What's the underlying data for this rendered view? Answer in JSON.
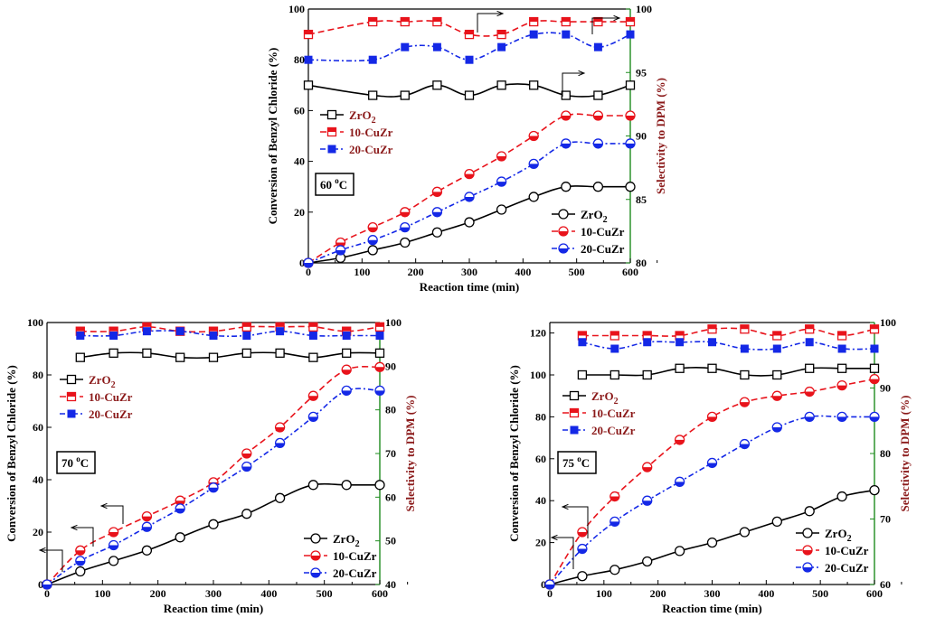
{
  "chart_data": [
    {
      "type": "line",
      "temperature": "60 °C",
      "temp_main": "60 ",
      "temp_sup": "o",
      "temp_unit": "C",
      "xlabel": "Reaction time (min)",
      "ylabel": "Conversion of Benzyl Chloride (%)",
      "ylabel_right": "Selectivity to DPM (%)",
      "x_ticks": [
        0,
        100,
        200,
        300,
        400,
        500,
        600
      ],
      "y_ticks": [
        0,
        20,
        40,
        60,
        80,
        100
      ],
      "y2_ticks": [
        80,
        85,
        90,
        95,
        100
      ],
      "xlim": [
        0,
        600
      ],
      "ylim": [
        0,
        100
      ],
      "y2lim": [
        80,
        100
      ],
      "conversion_series": [
        {
          "name": "ZrO2",
          "x": [
            0,
            60,
            120,
            180,
            240,
            300,
            360,
            420,
            480,
            540,
            600
          ],
          "values": [
            0,
            2,
            5,
            8,
            12,
            16,
            21,
            26,
            30,
            30,
            30
          ]
        },
        {
          "name": "10-CuZr",
          "x": [
            0,
            60,
            120,
            180,
            240,
            300,
            360,
            420,
            480,
            540,
            600
          ],
          "values": [
            0,
            8,
            14,
            20,
            28,
            35,
            42,
            50,
            58,
            58,
            58
          ]
        },
        {
          "name": "20-CuZr",
          "x": [
            0,
            60,
            120,
            180,
            240,
            300,
            360,
            420,
            480,
            540,
            600
          ],
          "values": [
            0,
            5,
            9,
            14,
            20,
            26,
            32,
            39,
            47,
            47,
            47
          ]
        }
      ],
      "selectivity_series": [
        {
          "name": "ZrO2",
          "x": [
            0,
            120,
            180,
            240,
            300,
            360,
            420,
            480,
            540,
            600
          ],
          "values": [
            94.0,
            93.2,
            93.2,
            94.0,
            93.2,
            94.0,
            94.0,
            93.2,
            93.2,
            94.0
          ]
        },
        {
          "name": "10-CuZr",
          "x": [
            0,
            120,
            180,
            240,
            300,
            360,
            420,
            480,
            540,
            600
          ],
          "values": [
            98.0,
            99.0,
            99.0,
            99.0,
            98.0,
            98.0,
            99.0,
            99.0,
            99.0,
            99.0
          ]
        },
        {
          "name": "20-CuZr",
          "x": [
            0,
            120,
            180,
            240,
            300,
            360,
            420,
            480,
            540,
            600
          ],
          "values": [
            96.0,
            96.0,
            97.0,
            97.0,
            96.0,
            97.0,
            98.0,
            98.0,
            97.0,
            98.0
          ]
        }
      ]
    },
    {
      "type": "line",
      "temperature": "70 °C",
      "temp_main": "70 ",
      "temp_sup": "o",
      "temp_unit": "C",
      "xlabel": "Reaction time (min)",
      "ylabel": "Conversion of Benzyl Chloride (%)",
      "ylabel_right": "Selectivity to DPM (%)",
      "x_ticks": [
        0,
        100,
        200,
        300,
        400,
        500,
        600
      ],
      "y_ticks": [
        0,
        20,
        40,
        60,
        80,
        100
      ],
      "y2_ticks": [
        40,
        50,
        60,
        70,
        80,
        90,
        100
      ],
      "xlim": [
        0,
        600
      ],
      "ylim": [
        0,
        100
      ],
      "y2lim": [
        40,
        100
      ],
      "conversion_series": [
        {
          "name": "ZrO2",
          "x": [
            0,
            60,
            120,
            180,
            240,
            300,
            360,
            420,
            480,
            540,
            600
          ],
          "values": [
            0,
            5,
            9,
            13,
            18,
            23,
            27,
            33,
            38,
            38,
            38
          ]
        },
        {
          "name": "10-CuZr",
          "x": [
            0,
            60,
            120,
            180,
            240,
            300,
            360,
            420,
            480,
            540,
            600
          ],
          "values": [
            0,
            13,
            20,
            26,
            32,
            39,
            50,
            60,
            72,
            82,
            83
          ]
        },
        {
          "name": "20-CuZr",
          "x": [
            0,
            60,
            120,
            180,
            240,
            300,
            360,
            420,
            480,
            540,
            600
          ],
          "values": [
            0,
            9,
            15,
            22,
            29,
            37,
            45,
            54,
            64,
            74,
            74
          ]
        }
      ],
      "selectivity_series": [
        {
          "name": "ZrO2",
          "x": [
            60,
            120,
            180,
            240,
            300,
            360,
            420,
            480,
            540,
            600
          ],
          "values": [
            92.0,
            93.0,
            93.0,
            92.0,
            92.0,
            93.0,
            93.0,
            92.0,
            93.0,
            93.0
          ]
        },
        {
          "name": "10-CuZr",
          "x": [
            60,
            120,
            180,
            240,
            300,
            360,
            420,
            480,
            540,
            600
          ],
          "values": [
            98.0,
            98.0,
            99.0,
            98.0,
            98.0,
            99.0,
            99.0,
            99.0,
            98.0,
            99.0
          ]
        },
        {
          "name": "20-CuZr",
          "x": [
            60,
            120,
            180,
            240,
            300,
            360,
            420,
            480,
            540,
            600
          ],
          "values": [
            97.0,
            97.0,
            98.0,
            98.0,
            97.0,
            97.0,
            98.0,
            97.0,
            97.0,
            97.0
          ]
        }
      ]
    },
    {
      "type": "line",
      "temperature": "75 °C",
      "temp_main": "75 ",
      "temp_sup": "o",
      "temp_unit": "C",
      "xlabel": "Reaction time (min)",
      "ylabel": "Conversion of Benzyl Chloride (%)",
      "ylabel_right": "Selectivity to DPM (%)",
      "x_ticks": [
        0,
        100,
        200,
        300,
        400,
        500,
        600
      ],
      "y_ticks": [
        0,
        20,
        40,
        60,
        80,
        100,
        120
      ],
      "y2_ticks": [
        60,
        70,
        80,
        90,
        100
      ],
      "xlim": [
        0,
        600
      ],
      "ylim": [
        0,
        125
      ],
      "y2lim": [
        60,
        100
      ],
      "conversion_series": [
        {
          "name": "ZrO2",
          "x": [
            0,
            60,
            120,
            180,
            240,
            300,
            360,
            420,
            480,
            540,
            600
          ],
          "values": [
            0,
            4,
            7,
            11,
            16,
            20,
            25,
            30,
            35,
            42,
            45
          ]
        },
        {
          "name": "10-CuZr",
          "x": [
            0,
            60,
            120,
            180,
            240,
            300,
            360,
            420,
            480,
            540,
            600
          ],
          "values": [
            0,
            25,
            42,
            56,
            69,
            80,
            87,
            90,
            92,
            95,
            98
          ]
        },
        {
          "name": "20-CuZr",
          "x": [
            0,
            60,
            120,
            180,
            240,
            300,
            360,
            420,
            480,
            540,
            600
          ],
          "values": [
            0,
            17,
            30,
            40,
            49,
            58,
            67,
            75,
            80,
            80,
            80
          ]
        }
      ],
      "selectivity_series": [
        {
          "name": "ZrO2",
          "x": [
            60,
            120,
            180,
            240,
            300,
            360,
            420,
            480,
            540,
            600
          ],
          "values": [
            92.0,
            92.0,
            92.0,
            93.0,
            93.0,
            92.0,
            92.0,
            93.0,
            93.0,
            93.0
          ]
        },
        {
          "name": "10-CuZr",
          "x": [
            60,
            120,
            180,
            240,
            300,
            360,
            420,
            480,
            540,
            600
          ],
          "values": [
            98.0,
            98.0,
            98.0,
            98.0,
            99.0,
            99.0,
            98.0,
            99.0,
            98.0,
            99.0
          ]
        },
        {
          "name": "20-CuZr",
          "x": [
            60,
            120,
            180,
            240,
            300,
            360,
            420,
            480,
            540,
            600
          ],
          "values": [
            97.0,
            96.0,
            97.0,
            97.0,
            97.0,
            96.0,
            96.0,
            97.0,
            96.0,
            96.0
          ]
        }
      ]
    }
  ],
  "legend": {
    "labels": [
      "ZrO",
      "10-CuZr",
      "20-CuZr"
    ],
    "zro2_sub": "2"
  },
  "colors": {
    "zro2": "#000000",
    "cu10": "#e8131b",
    "cu20": "#1428e6",
    "right_axis": "#1e8c1e",
    "right_label": "#8b1a1a"
  }
}
